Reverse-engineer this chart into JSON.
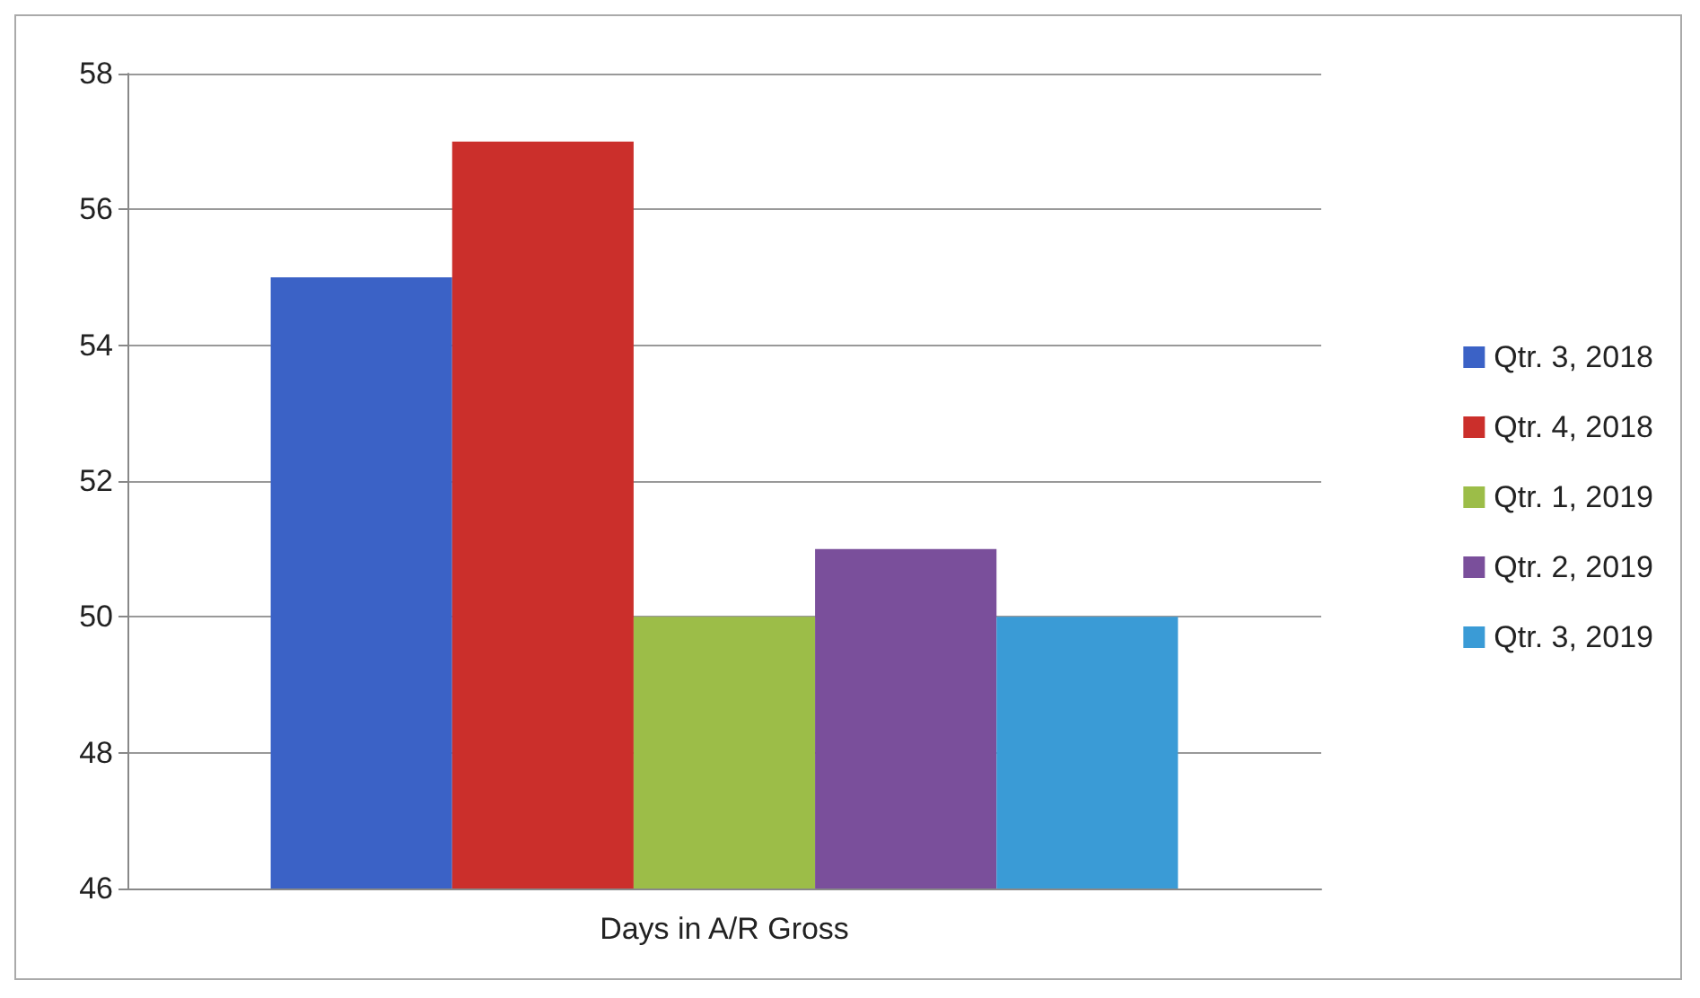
{
  "chart_data": {
    "type": "bar",
    "categories": [
      "Days in A/R Gross"
    ],
    "series": [
      {
        "name": "Qtr. 3, 2018",
        "color": "#3b62c6",
        "values": [
          55
        ]
      },
      {
        "name": "Qtr. 4, 2018",
        "color": "#cb2f2b",
        "values": [
          57
        ]
      },
      {
        "name": "Qtr. 1, 2019",
        "color": "#9cbd48",
        "values": [
          50
        ]
      },
      {
        "name": "Qtr. 2, 2019",
        "color": "#7a4f9b",
        "values": [
          51
        ]
      },
      {
        "name": "Qtr. 3, 2019",
        "color": "#3a9bd6",
        "values": [
          50
        ]
      }
    ],
    "ylim": [
      46,
      58
    ],
    "yticks": [
      46,
      48,
      50,
      52,
      54,
      56,
      58
    ],
    "grid": "y",
    "legend": "right"
  }
}
